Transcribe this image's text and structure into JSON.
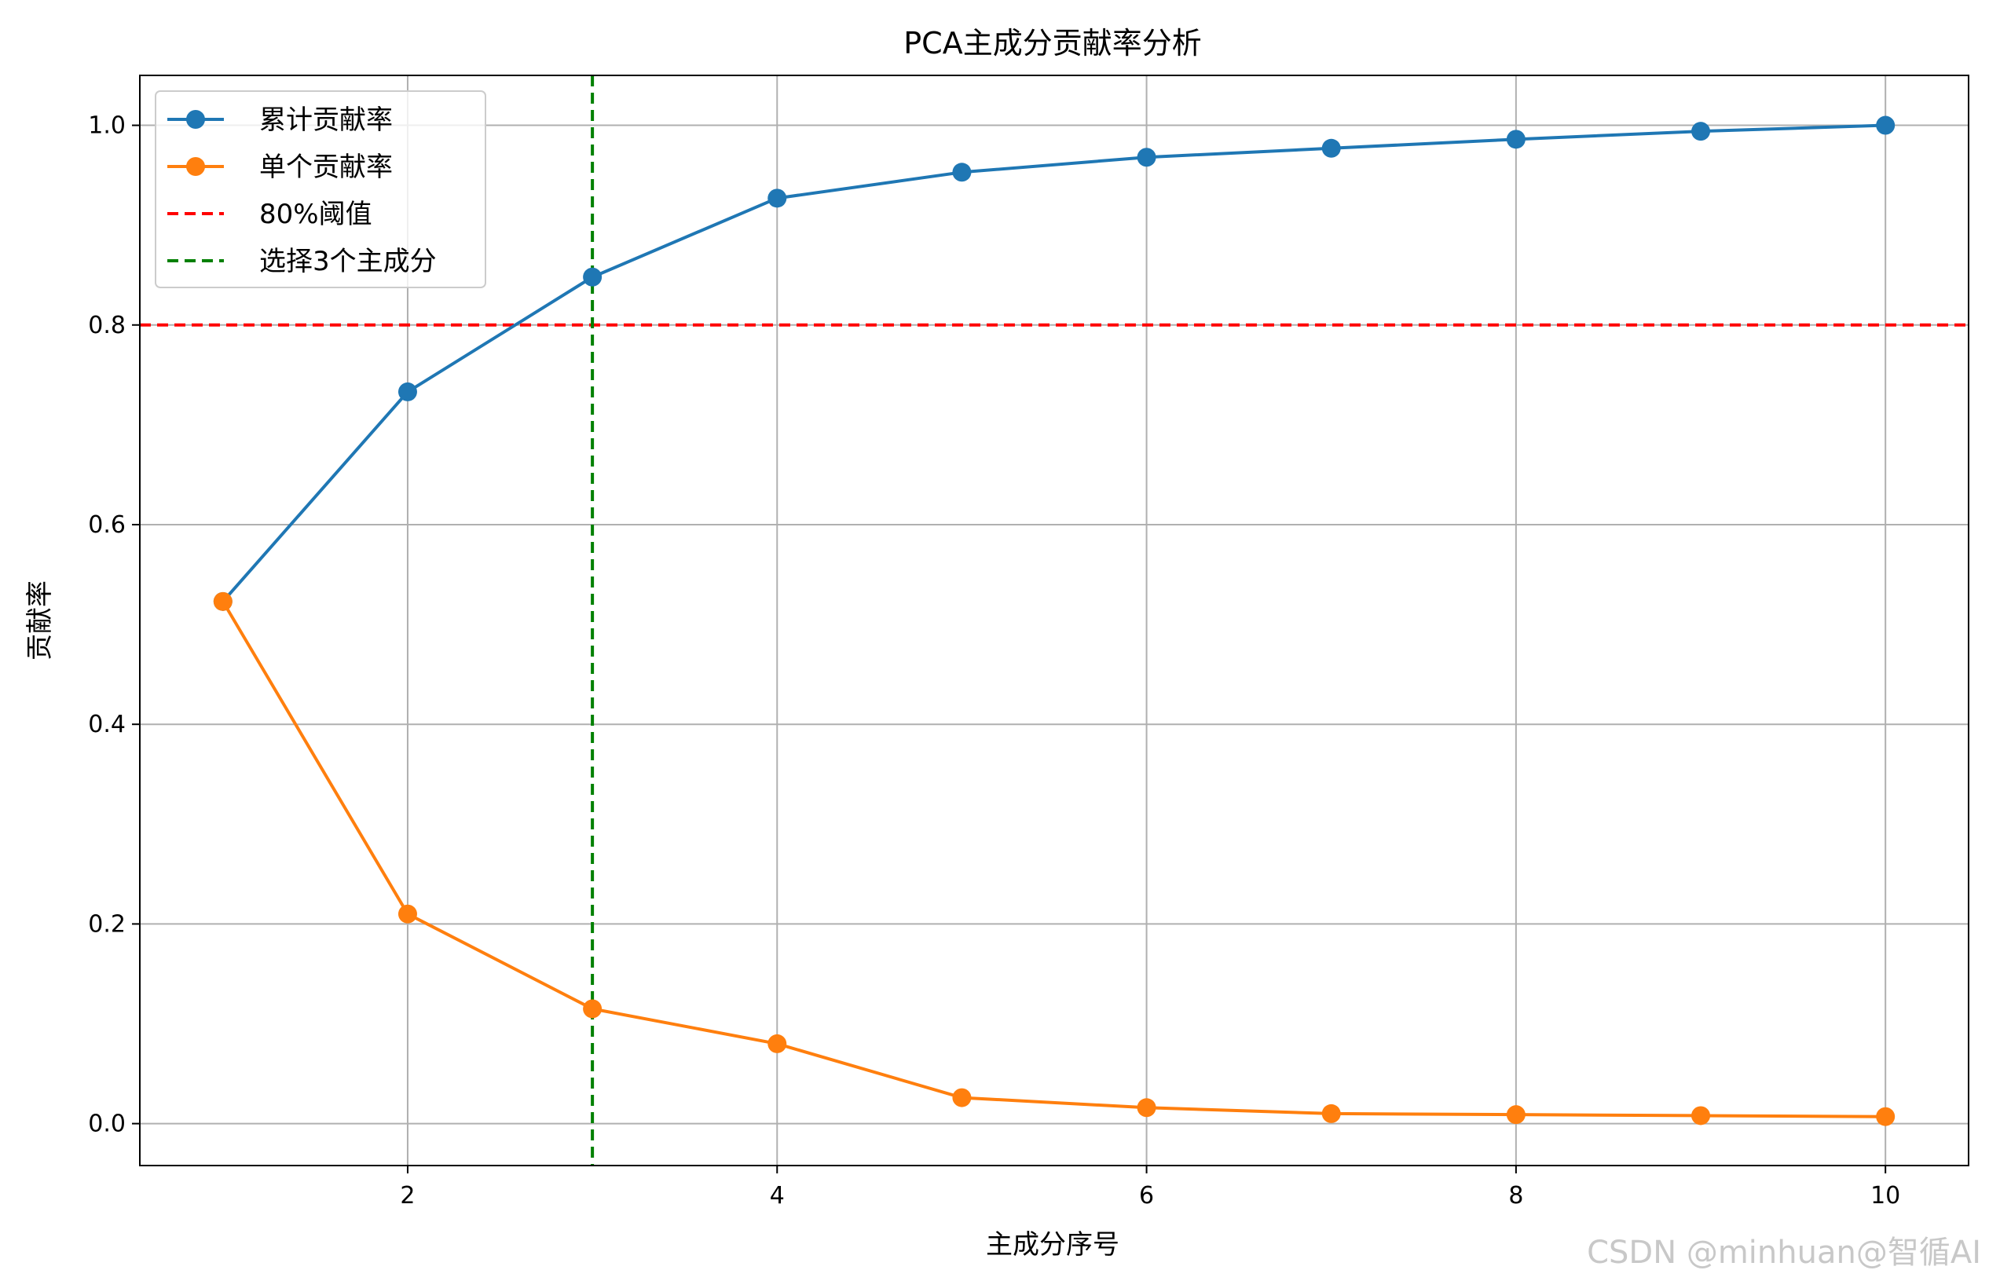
{
  "chart_data": {
    "type": "line",
    "title": "PCA主成分贡献率分析",
    "xlabel": "主成分序号",
    "ylabel": "贡献率",
    "x": [
      1,
      2,
      3,
      4,
      5,
      6,
      7,
      8,
      9,
      10
    ],
    "xlim": [
      0.55,
      10.45
    ],
    "ylim": [
      -0.042,
      1.05
    ],
    "xticks": [
      2,
      4,
      6,
      8,
      10
    ],
    "yticks": [
      0.0,
      0.2,
      0.4,
      0.6,
      0.8,
      1.0
    ],
    "xtick_labels": [
      "2",
      "4",
      "6",
      "8",
      "10"
    ],
    "ytick_labels": [
      "0.0",
      "0.2",
      "0.4",
      "0.6",
      "0.8",
      "1.0"
    ],
    "grid": true,
    "legend_position": "top-left",
    "series": [
      {
        "name": "累计贡献率",
        "color": "#1f77b4",
        "values": [
          0.523,
          0.733,
          0.848,
          0.927,
          0.953,
          0.968,
          0.977,
          0.986,
          0.994,
          1.0
        ]
      },
      {
        "name": "单个贡献率",
        "color": "#ff7f0e",
        "values": [
          0.523,
          0.21,
          0.115,
          0.08,
          0.026,
          0.016,
          0.01,
          0.009,
          0.008,
          0.007
        ]
      }
    ],
    "reference_lines": [
      {
        "name": "80%阈值",
        "orientation": "horizontal",
        "value": 0.8,
        "color": "#ff0000",
        "style": "dashed"
      },
      {
        "name": "选择3个主成分",
        "orientation": "vertical",
        "value": 3,
        "color": "#008000",
        "style": "dashed"
      }
    ]
  },
  "watermark": "CSDN @minhuan@智循AI"
}
